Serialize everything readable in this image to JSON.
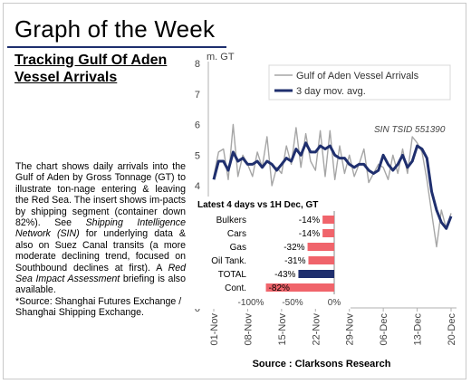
{
  "header": {
    "title": "Graph of the Week"
  },
  "subtitle": "Tracking Gulf Of Aden Vessel Arrivals",
  "description": {
    "p1": "The chart shows daily arrivals into the Gulf of Aden by Gross Tonnage (GT) to illustrate ton-nage entering & leaving the Red Sea. The insert shows im-pacts by shipping segment (container down 82%). See ",
    "link1": "Shipping Intelligence Network (SIN)",
    "p2": " for underlying data & also on Suez Canal transits (a more moderate declining trend, focused on Southbound declines at first). A ",
    "link2": "Red Sea Impact Assessment",
    "p3": " briefing is also available.",
    "source_note": "*Source: Shanghai Futures Exchange / Shanghai Shipping Exchange."
  },
  "colors": {
    "daily": "#a6a6a6",
    "avg": "#1f2f6e",
    "neg_bar": "#f0646b",
    "total_bar": "#1f2f6e"
  },
  "chart_data": [
    {
      "type": "line",
      "ylabel": "m. GT",
      "ylim": [
        0,
        8
      ],
      "yticks": [
        0,
        1,
        2,
        3,
        4,
        5,
        6,
        7,
        8
      ],
      "x_tick_labels": [
        "01-Nov",
        "08-Nov",
        "15-Nov",
        "22-Nov",
        "29-Nov",
        "06-Dec",
        "13-Dec",
        "20-Dec"
      ],
      "x_tick_index": [
        0,
        7,
        14,
        21,
        28,
        35,
        42,
        49
      ],
      "annotation": "SIN TSID 551390",
      "source": "Source : Clarksons Research",
      "legend_position": "top-right",
      "series": [
        {
          "name": "Gulf of Aden Vessel Arrivals",
          "values": [
            4.3,
            5.1,
            5.2,
            4.2,
            6.0,
            4.3,
            5.0,
            4.7,
            4.3,
            5.1,
            4.6,
            5.6,
            4.0,
            4.6,
            4.4,
            5.3,
            4.7,
            5.9,
            4.6,
            5.7,
            4.8,
            4.5,
            5.8,
            4.3,
            5.8,
            4.2,
            5.3,
            4.4,
            5.0,
            4.3,
            4.7,
            5.2,
            4.1,
            4.4,
            4.7,
            4.6,
            4.2,
            5.0,
            4.4,
            5.2,
            4.4,
            5.6,
            5.4,
            5.1,
            4.2,
            3.1,
            2.0,
            3.2,
            2.6,
            3.1
          ]
        },
        {
          "name": "3 day mov. avg.",
          "values": [
            4.2,
            4.8,
            4.8,
            4.5,
            5.1,
            4.8,
            4.9,
            4.7,
            4.7,
            4.8,
            4.6,
            4.8,
            4.7,
            4.5,
            4.7,
            4.9,
            4.8,
            5.2,
            5.0,
            5.4,
            5.1,
            5.1,
            5.3,
            5.2,
            5.3,
            5.0,
            4.9,
            4.9,
            4.7,
            4.6,
            4.7,
            4.7,
            4.5,
            4.4,
            4.5,
            5.0,
            4.7,
            4.5,
            4.7,
            5.0,
            4.6,
            4.8,
            5.3,
            5.2,
            4.9,
            3.8,
            3.2,
            2.8,
            2.6,
            3.0
          ]
        }
      ]
    },
    {
      "type": "bar",
      "orientation": "horizontal",
      "title": "Latest 4 days vs 1H Dec, GT",
      "categories": [
        "Bulkers",
        "Cars",
        "Gas",
        "Oil Tank.",
        "TOTAL",
        "Cont."
      ],
      "values": [
        -14,
        -14,
        -32,
        -31,
        -43,
        -82
      ],
      "value_labels": [
        "-14%",
        "-14%",
        "-32%",
        "-31%",
        "-43%",
        "-82%"
      ],
      "xlim": [
        -100,
        0
      ],
      "x_tick_labels": [
        "-100%",
        "-50%",
        "0%"
      ],
      "x_ticks": [
        -100,
        -50,
        0
      ]
    }
  ]
}
